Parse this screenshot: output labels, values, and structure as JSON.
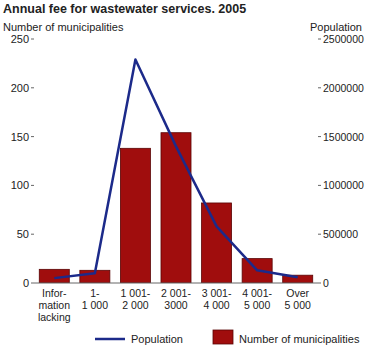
{
  "chart_data": {
    "type": "bar",
    "title": "Annual fee for wastewater services. 2005",
    "y_label": "Number of municipalities",
    "y2_label": "Population",
    "categories": [
      "Infor-\nmation\nlacking",
      "1-\n1 000",
      "1 001-\n2 000",
      "2 001-\n3000",
      "3 001-\n4 000",
      "4 001-\n5 000",
      "Over\n5 000"
    ],
    "ylim": [
      0,
      250
    ],
    "yticks": [
      0,
      50,
      100,
      150,
      200,
      250
    ],
    "y2lim": [
      0,
      2500000
    ],
    "y2ticks": [
      0,
      500000,
      1000000,
      1500000,
      2000000,
      2500000
    ],
    "grid": false,
    "series": [
      {
        "name": "Population",
        "type": "line",
        "axis": "y2",
        "color": "#1c2a8a",
        "values": [
          50000,
          100000,
          2290000,
          1400000,
          580000,
          130000,
          60000
        ]
      },
      {
        "name": "Number of municipalities",
        "type": "bar",
        "color": "#a00d0d",
        "values": [
          14,
          13,
          138,
          154,
          82,
          25,
          8
        ]
      }
    ]
  }
}
